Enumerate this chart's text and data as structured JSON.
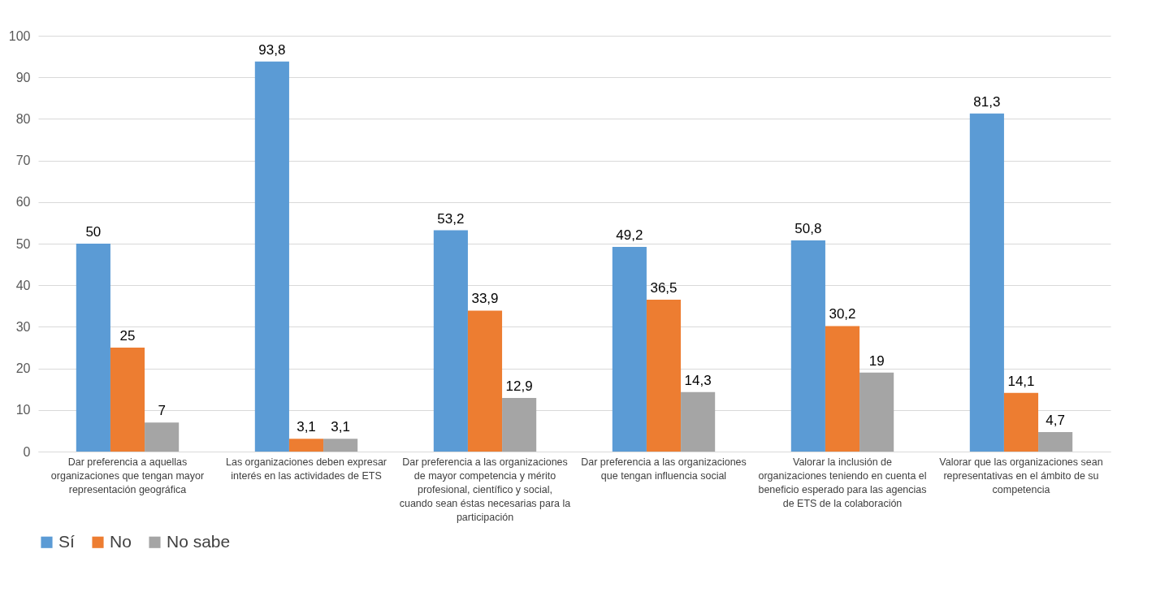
{
  "chart_data": {
    "type": "bar",
    "categories": [
      "Dar preferencia a aquellas organizaciones que tengan mayor representación geográfica",
      "Las organizaciones deben expresar interés en las actividades de ETS",
      "Dar preferencia a las organizaciones de mayor competencia y mérito profesional, científico y social, cuando sean éstas necesarias para la participación",
      "Dar preferencia a las organizaciones que tengan influencia social",
      "Valorar la inclusión de organizaciones teniendo en cuenta el beneficio esperado para las agencias de ETS de la colaboración",
      "Valorar que las organizaciones sean representativas en el ámbito de su competencia"
    ],
    "series": [
      {
        "name": "Sí",
        "color": "#5b9bd5",
        "values": [
          50,
          93.8,
          53.2,
          49.2,
          50.8,
          81.3
        ],
        "value_labels": [
          "50",
          "93,8",
          "53,2",
          "49,2",
          "50,8",
          "81,3"
        ]
      },
      {
        "name": "No",
        "color": "#ed7d31",
        "values": [
          25,
          3.1,
          33.9,
          36.5,
          30.2,
          14.1
        ],
        "value_labels": [
          "25",
          "3,1",
          "33,9",
          "36,5",
          "30,2",
          "14,1"
        ]
      },
      {
        "name": "No sabe",
        "color": "#a5a5a5",
        "values": [
          7,
          3.1,
          12.9,
          14.3,
          19,
          4.7
        ],
        "value_labels": [
          "7",
          "3,1",
          "12,9",
          "14,3",
          "19",
          "4,7"
        ]
      }
    ],
    "ylim": [
      0,
      100
    ],
    "yticks": [
      0,
      10,
      20,
      30,
      40,
      50,
      60,
      70,
      80,
      90,
      100
    ],
    "grid": "y",
    "legend": "bottom"
  }
}
